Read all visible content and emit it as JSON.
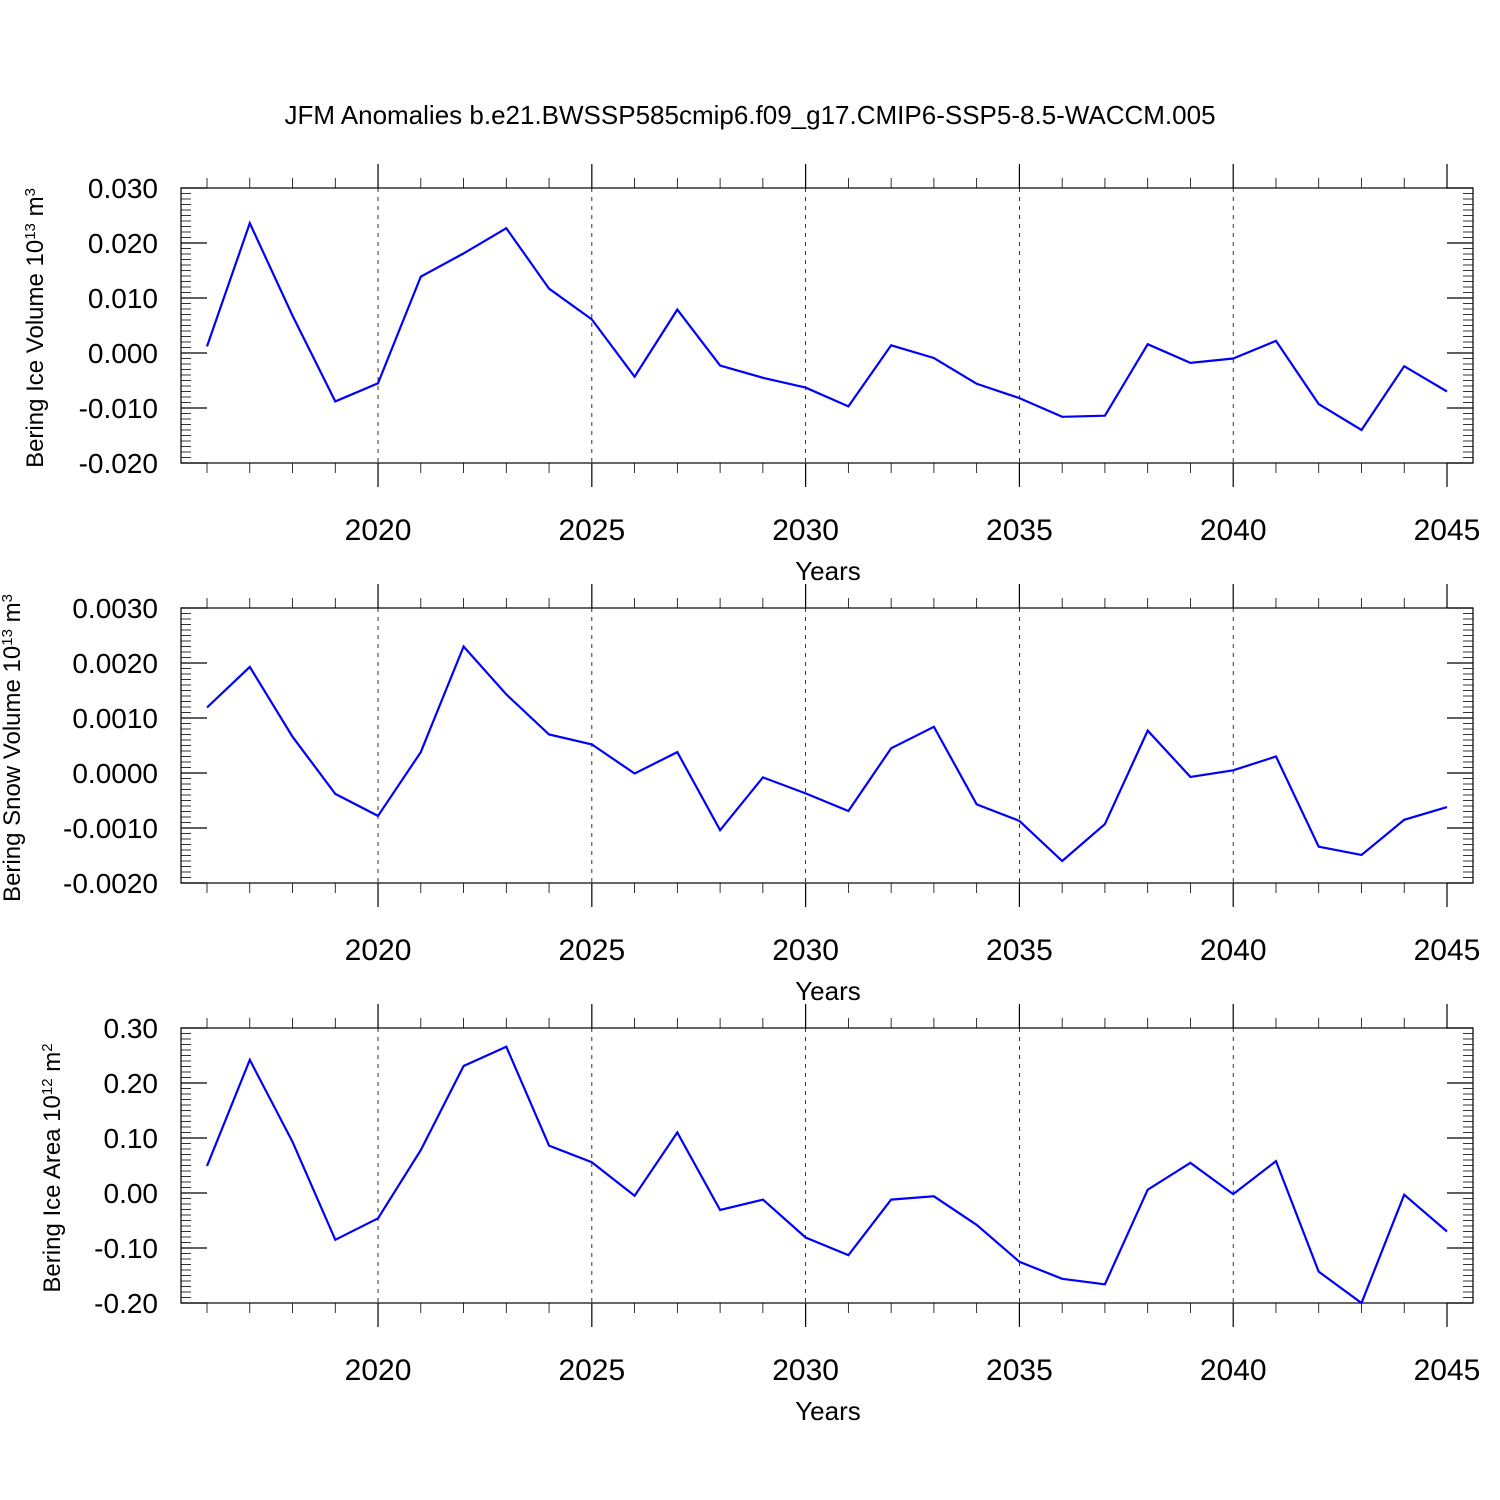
{
  "chart_data": [
    {
      "type": "line",
      "title": "JFM Anomalies b.e21.BWSSP585cmip6.f09_g17.CMIP6-SSP5-8.5-WACCM.005",
      "xlabel": "Years",
      "ylabel": "Bering Ice Volume 10",
      "ylabel_exp": "13",
      "ylabel_unit": " m",
      "ylabel_unit_exp": "3",
      "xlim": [
        2016,
        2045
      ],
      "ylim": [
        -0.02,
        0.03
      ],
      "xticks": [
        2020,
        2025,
        2030,
        2035,
        2040,
        2045
      ],
      "yticks": [
        -0.02,
        -0.01,
        0.0,
        0.01,
        0.02,
        0.03
      ],
      "ytick_labels": [
        "-0.020",
        "-0.010",
        "0.000",
        "0.010",
        "0.020",
        "0.030"
      ],
      "grid": "x-dashed",
      "x": [
        2016,
        2017,
        2018,
        2019,
        2020,
        2021,
        2022,
        2023,
        2024,
        2025,
        2026,
        2027,
        2028,
        2029,
        2030,
        2031,
        2032,
        2033,
        2034,
        2035,
        2036,
        2037,
        2038,
        2039,
        2040,
        2041,
        2042,
        2043,
        2044,
        2045
      ],
      "series": [
        {
          "color": "#0000ff",
          "values": [
            0.0012,
            0.0236,
            0.0068,
            -0.0088,
            -0.0055,
            0.0139,
            0.0181,
            0.0227,
            0.0117,
            0.0061,
            -0.0043,
            0.0079,
            -0.0023,
            -0.0045,
            -0.0063,
            -0.0097,
            0.0014,
            -0.0009,
            -0.0056,
            -0.0082,
            -0.0116,
            -0.0114,
            0.0016,
            -0.0018,
            -0.001,
            0.0022,
            -0.0093,
            -0.014,
            -0.0024,
            -0.007
          ]
        }
      ]
    },
    {
      "type": "line",
      "xlabel": "Years",
      "ylabel": "Bering Snow Volume 10",
      "ylabel_exp": "13",
      "ylabel_unit": " m",
      "ylabel_unit_exp": "3",
      "xlim": [
        2016,
        2045
      ],
      "ylim": [
        -0.002,
        0.003
      ],
      "xticks": [
        2020,
        2025,
        2030,
        2035,
        2040,
        2045
      ],
      "yticks": [
        -0.002,
        -0.001,
        0.0,
        0.001,
        0.002,
        0.003
      ],
      "ytick_labels": [
        "-0.0020",
        "-0.0010",
        "0.0000",
        "0.0010",
        "0.0020",
        "0.0030"
      ],
      "grid": "x-dashed",
      "x": [
        2016,
        2017,
        2018,
        2019,
        2020,
        2021,
        2022,
        2023,
        2024,
        2025,
        2026,
        2027,
        2028,
        2029,
        2030,
        2031,
        2032,
        2033,
        2034,
        2035,
        2036,
        2037,
        2038,
        2039,
        2040,
        2041,
        2042,
        2043,
        2044,
        2045
      ],
      "series": [
        {
          "color": "#0000ff",
          "values": [
            0.00119,
            0.00193,
            0.00066,
            -0.00038,
            -0.00078,
            0.00038,
            0.0023,
            0.00143,
            0.0007,
            0.00052,
            -1e-05,
            0.00038,
            -0.00104,
            -8e-05,
            -0.00037,
            -0.00069,
            0.00045,
            0.00084,
            -0.00057,
            -0.00087,
            -0.0016,
            -0.00093,
            0.00077,
            -7e-05,
            5e-05,
            0.0003,
            -0.00134,
            -0.00149,
            -0.00085,
            -0.00062
          ]
        }
      ]
    },
    {
      "type": "line",
      "xlabel": "Years",
      "ylabel": "Bering Ice Area 10",
      "ylabel_exp": "12",
      "ylabel_unit": " m",
      "ylabel_unit_exp": "2",
      "xlim": [
        2016,
        2045
      ],
      "ylim": [
        -0.2,
        0.3
      ],
      "xticks": [
        2020,
        2025,
        2030,
        2035,
        2040,
        2045
      ],
      "yticks": [
        -0.2,
        -0.1,
        0.0,
        0.1,
        0.2,
        0.3
      ],
      "ytick_labels": [
        "-0.20",
        "-0.10",
        "0.00",
        "0.10",
        "0.20",
        "0.30"
      ],
      "grid": "x-dashed",
      "x": [
        2016,
        2017,
        2018,
        2019,
        2020,
        2021,
        2022,
        2023,
        2024,
        2025,
        2026,
        2027,
        2028,
        2029,
        2030,
        2031,
        2032,
        2033,
        2034,
        2035,
        2036,
        2037,
        2038,
        2039,
        2040,
        2041,
        2042,
        2043,
        2044,
        2045
      ],
      "series": [
        {
          "color": "#0000ff",
          "values": [
            0.049,
            0.242,
            0.093,
            -0.085,
            -0.046,
            0.078,
            0.231,
            0.266,
            0.086,
            0.056,
            -0.005,
            0.11,
            -0.031,
            -0.012,
            -0.081,
            -0.113,
            -0.012,
            -0.006,
            -0.058,
            -0.125,
            -0.156,
            -0.166,
            0.006,
            0.055,
            -0.002,
            0.058,
            -0.143,
            -0.2,
            -0.003,
            -0.07
          ]
        }
      ]
    }
  ]
}
